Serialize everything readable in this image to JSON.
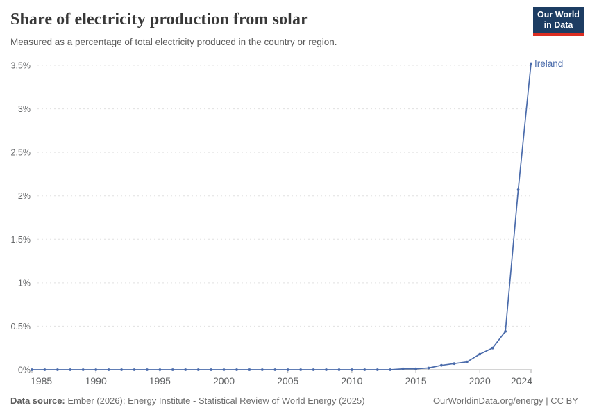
{
  "header": {
    "title": "Share of electricity production from solar",
    "subtitle": "Measured as a percentage of total electricity produced in the country or region.",
    "logo": {
      "line1": "Our World",
      "line2": "in Data",
      "bg_color": "#1d3d63",
      "accent_color": "#dc2e22"
    }
  },
  "chart_data": {
    "type": "line",
    "title": "Share of electricity production from solar",
    "xlabel": "",
    "ylabel": "",
    "grid": "horizontal-dashed",
    "legend_position": "end-of-line",
    "xlim": [
      1985,
      2024
    ],
    "ylim": [
      0,
      3.5
    ],
    "x_ticks": [
      1985,
      1990,
      1995,
      2000,
      2005,
      2010,
      2015,
      2020,
      2024
    ],
    "y_ticks": [
      0,
      0.5,
      1,
      1.5,
      2,
      2.5,
      3,
      3.5
    ],
    "y_tick_labels": [
      "0%",
      "0.5%",
      "1%",
      "1.5%",
      "2%",
      "2.5%",
      "3%",
      "3.5%"
    ],
    "years": [
      1985,
      1986,
      1987,
      1988,
      1989,
      1990,
      1991,
      1992,
      1993,
      1994,
      1995,
      1996,
      1997,
      1998,
      1999,
      2000,
      2001,
      2002,
      2003,
      2004,
      2005,
      2006,
      2007,
      2008,
      2009,
      2010,
      2011,
      2012,
      2013,
      2014,
      2015,
      2016,
      2017,
      2018,
      2019,
      2020,
      2021,
      2022,
      2023,
      2024
    ],
    "series": [
      {
        "name": "Ireland",
        "color": "#4a6bab",
        "values": [
          0,
          0,
          0,
          0,
          0,
          0,
          0,
          0,
          0,
          0,
          0,
          0,
          0,
          0,
          0,
          0,
          0,
          0,
          0,
          0,
          0,
          0,
          0,
          0,
          0,
          0,
          0,
          0,
          0,
          0.01,
          0.01,
          0.02,
          0.05,
          0.07,
          0.09,
          0.18,
          0.25,
          0.44,
          2.07,
          3.52
        ]
      }
    ]
  },
  "footer": {
    "source_label": "Data source:",
    "source_text": " Ember (2026); Energy Institute - Statistical Review of World Energy (2025)",
    "rights": "OurWorldinData.org/energy | CC BY"
  },
  "colors": {
    "line": "#4a6bab",
    "gridline": "#e0e0e0",
    "axis": "#a8a8a8",
    "title_text": "#383838",
    "subtitle_text": "#5b5b5b"
  }
}
